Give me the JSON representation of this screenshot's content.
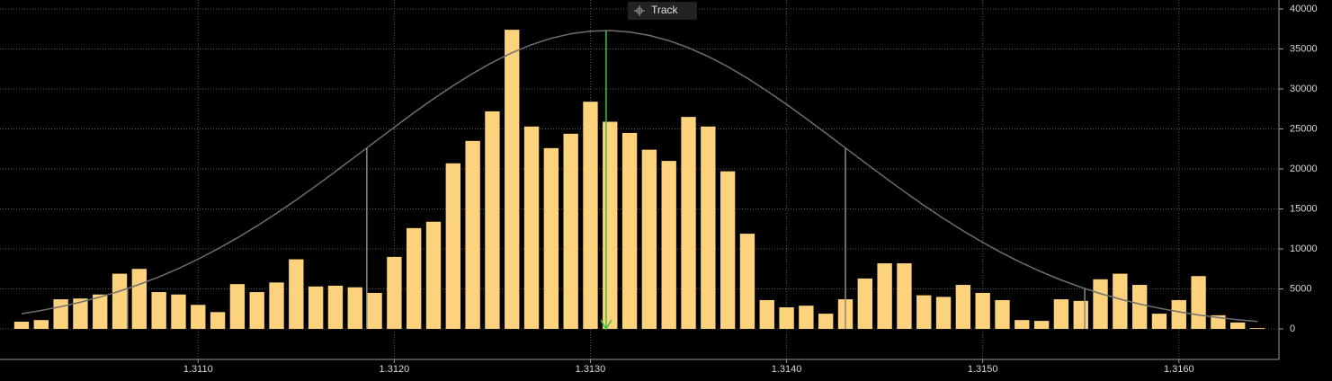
{
  "chart_data": {
    "type": "bar",
    "button": "Track",
    "x": [
      1.3101,
      1.3102,
      1.3103,
      1.3104,
      1.3105,
      1.3106,
      1.3107,
      1.3108,
      1.3109,
      1.311,
      1.3111,
      1.3112,
      1.3113,
      1.3114,
      1.3115,
      1.3116,
      1.3117,
      1.3118,
      1.3119,
      1.312,
      1.3121,
      1.3122,
      1.3123,
      1.3124,
      1.3125,
      1.3126,
      1.3127,
      1.3128,
      1.3129,
      1.313,
      1.3131,
      1.3132,
      1.3133,
      1.3134,
      1.3135,
      1.3136,
      1.3137,
      1.3138,
      1.3139,
      1.314,
      1.3141,
      1.3142,
      1.3143,
      1.3144,
      1.3145,
      1.3146,
      1.3147,
      1.3148,
      1.3149,
      1.315,
      1.3151,
      1.3152,
      1.3153,
      1.3154,
      1.3155,
      1.3156,
      1.3157,
      1.3158,
      1.3159,
      1.316,
      1.3161,
      1.3162,
      1.3163,
      1.3164
    ],
    "values": [
      900,
      1100,
      3700,
      3800,
      4300,
      6900,
      7500,
      4600,
      4300,
      3000,
      2100,
      5600,
      4600,
      5800,
      8700,
      5300,
      5400,
      5200,
      4500,
      9000,
      12600,
      13400,
      20700,
      23500,
      27200,
      37400,
      25300,
      22600,
      24400,
      28400,
      25900,
      24500,
      22400,
      21000,
      26500,
      25300,
      19700,
      11900,
      3600,
      2700,
      2900,
      1900,
      3700,
      6300,
      8200,
      8200,
      4200,
      4000,
      5500,
      4500,
      3600,
      1100,
      1000,
      3700,
      3500,
      6200,
      6900,
      5500,
      1900,
      3600,
      6600,
      1700,
      800,
      100
    ],
    "color": "#fdd27c",
    "curve": {
      "color": "#6e6e6e",
      "values": [
        1890,
        2300,
        2780,
        3340,
        3980,
        4720,
        5560,
        6500,
        7550,
        8720,
        10000,
        11380,
        12870,
        14450,
        16120,
        17870,
        19670,
        21520,
        23360,
        25210,
        27030,
        28760,
        30410,
        31940,
        33320,
        34520,
        35540,
        36330,
        36900,
        37220,
        37300,
        37120,
        36700,
        36040,
        35150,
        34060,
        32790,
        31340,
        29750,
        28070,
        26290,
        24480,
        22620,
        20780,
        18950,
        17170,
        15440,
        13800,
        12260,
        10810,
        9470,
        8240,
        7120,
        6110,
        5210,
        4410,
        3720,
        3100,
        2580,
        2130,
        1740,
        1420,
        1150,
        920
      ]
    },
    "sigma_lines": {
      "color": "#8a8a8a",
      "x": [
        1.31064,
        1.31186,
        1.3143,
        1.31552
      ],
      "values": [
        5040,
        22620,
        22620,
        5040
      ]
    },
    "mean": {
      "color": "#3cc23c",
      "x": 1.31308,
      "value": 37300
    },
    "xlim": [
      1.30999,
      1.31651
    ],
    "ylim": [
      -3820,
      41120
    ],
    "xticks": [
      {
        "value": 1.311,
        "label": "1.3110"
      },
      {
        "value": 1.312,
        "label": "1.3120"
      },
      {
        "value": 1.313,
        "label": "1.3130"
      },
      {
        "value": 1.314,
        "label": "1.3140"
      },
      {
        "value": 1.315,
        "label": "1.3150"
      },
      {
        "value": 1.316,
        "label": "1.3160"
      }
    ],
    "yticks": [
      0,
      5000,
      10000,
      15000,
      20000,
      25000,
      30000,
      35000,
      40000
    ],
    "grid": true
  }
}
